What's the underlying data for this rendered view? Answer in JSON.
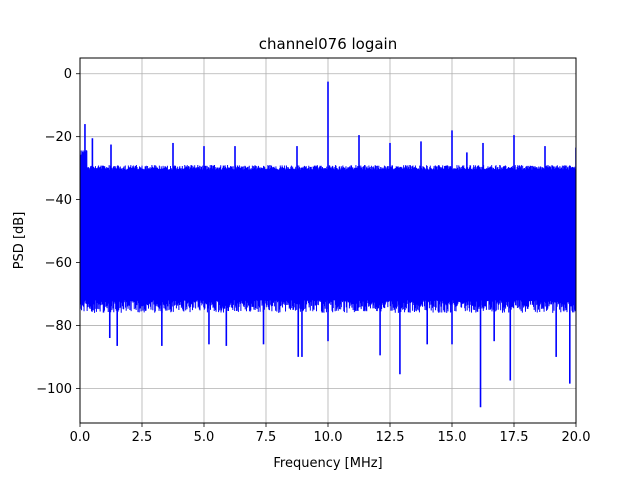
{
  "chart_data": {
    "type": "line",
    "title": "channel076 logain",
    "xlabel": "Frequency [MHz]",
    "ylabel": "PSD [dB]",
    "xlim": [
      0,
      20
    ],
    "ylim": [
      -111,
      5
    ],
    "grid": true,
    "series_color": "#0000ff",
    "x_ticks": [
      0,
      2.5,
      5,
      7.5,
      10,
      12.5,
      15,
      17.5,
      20
    ],
    "x_tick_labels": [
      "0.0",
      "2.5",
      "5.0",
      "7.5",
      "10.0",
      "12.5",
      "15.0",
      "17.5",
      "20.0"
    ],
    "y_ticks": [
      0,
      -20,
      -40,
      -60,
      -80,
      -100
    ],
    "y_tick_labels": [
      "0",
      "−20",
      "−40",
      "−60",
      "−80",
      "−100"
    ],
    "noise_floor": {
      "upper_envelope_db": -29,
      "lower_envelope_db": -72,
      "left_edge_upper_db": -24
    },
    "spikes": [
      {
        "x": 0.2,
        "y": -16
      },
      {
        "x": 0.5,
        "y": -20.5
      },
      {
        "x": 1.25,
        "y": -22.5
      },
      {
        "x": 3.75,
        "y": -22
      },
      {
        "x": 5.0,
        "y": -23
      },
      {
        "x": 6.25,
        "y": -23
      },
      {
        "x": 8.75,
        "y": -23
      },
      {
        "x": 10.0,
        "y": -2.5
      },
      {
        "x": 11.25,
        "y": -19.5
      },
      {
        "x": 12.5,
        "y": -22
      },
      {
        "x": 13.75,
        "y": -21.5
      },
      {
        "x": 15.0,
        "y": -18
      },
      {
        "x": 15.6,
        "y": -25
      },
      {
        "x": 16.25,
        "y": -22
      },
      {
        "x": 17.5,
        "y": -19.5
      },
      {
        "x": 18.75,
        "y": -23
      },
      {
        "x": 20.0,
        "y": -23.5
      }
    ],
    "dips": [
      {
        "x": 1.2,
        "y": -84
      },
      {
        "x": 1.5,
        "y": -86.5
      },
      {
        "x": 3.3,
        "y": -86.5
      },
      {
        "x": 5.2,
        "y": -86
      },
      {
        "x": 5.9,
        "y": -86.5
      },
      {
        "x": 7.4,
        "y": -86
      },
      {
        "x": 8.8,
        "y": -90
      },
      {
        "x": 8.95,
        "y": -90
      },
      {
        "x": 10.0,
        "y": -85
      },
      {
        "x": 12.1,
        "y": -89.5
      },
      {
        "x": 12.9,
        "y": -95.5
      },
      {
        "x": 14.0,
        "y": -86
      },
      {
        "x": 15.0,
        "y": -86
      },
      {
        "x": 16.15,
        "y": -106
      },
      {
        "x": 16.7,
        "y": -85
      },
      {
        "x": 17.35,
        "y": -97.5
      },
      {
        "x": 19.2,
        "y": -90
      },
      {
        "x": 19.75,
        "y": -98.5
      }
    ]
  }
}
